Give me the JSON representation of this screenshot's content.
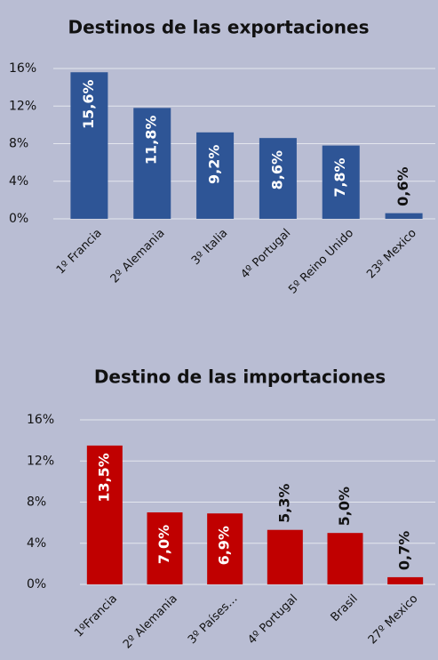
{
  "chart_data": [
    {
      "type": "bar",
      "title": "Destinos de las exportaciones",
      "categories": [
        "1º Francia",
        "2º Alemania",
        "3º Italia",
        "4º Portugal",
        "5º Reino Unido",
        "23º Mexico"
      ],
      "values": [
        15.6,
        11.8,
        9.2,
        8.6,
        7.8,
        0.6
      ],
      "value_labels": [
        "15,6%",
        "11,8%",
        "9,2%",
        "8,6%",
        "7,8%",
        "0,6%"
      ],
      "color": "#2e5596",
      "ylim": [
        0,
        16
      ],
      "yticks": [
        {
          "value": 0,
          "label": "0%"
        },
        {
          "value": 4,
          "label": "4%"
        },
        {
          "value": 8,
          "label": "8%"
        },
        {
          "value": 12,
          "label": "12%"
        },
        {
          "value": 16,
          "label": "16%"
        }
      ],
      "grid": true
    },
    {
      "type": "bar",
      "title": "Destino de las importaciones",
      "categories": [
        "1ºFrancia",
        "2º Alemania",
        "3º Países…",
        "4º Portugal",
        "Brasil",
        "27º Mexico"
      ],
      "values": [
        13.5,
        7.0,
        6.9,
        5.3,
        5.0,
        0.7
      ],
      "value_labels": [
        "13,5%",
        "7,0%",
        "6,9%",
        "5,3%",
        "5,0%",
        "0,7%"
      ],
      "color": "#c00000",
      "ylim": [
        0,
        16
      ],
      "yticks": [
        {
          "value": 0,
          "label": "0%"
        },
        {
          "value": 4,
          "label": "4%"
        },
        {
          "value": 8,
          "label": "8%"
        },
        {
          "value": 12,
          "label": "12%"
        },
        {
          "value": 16,
          "label": "16%"
        }
      ],
      "grid": true
    }
  ]
}
